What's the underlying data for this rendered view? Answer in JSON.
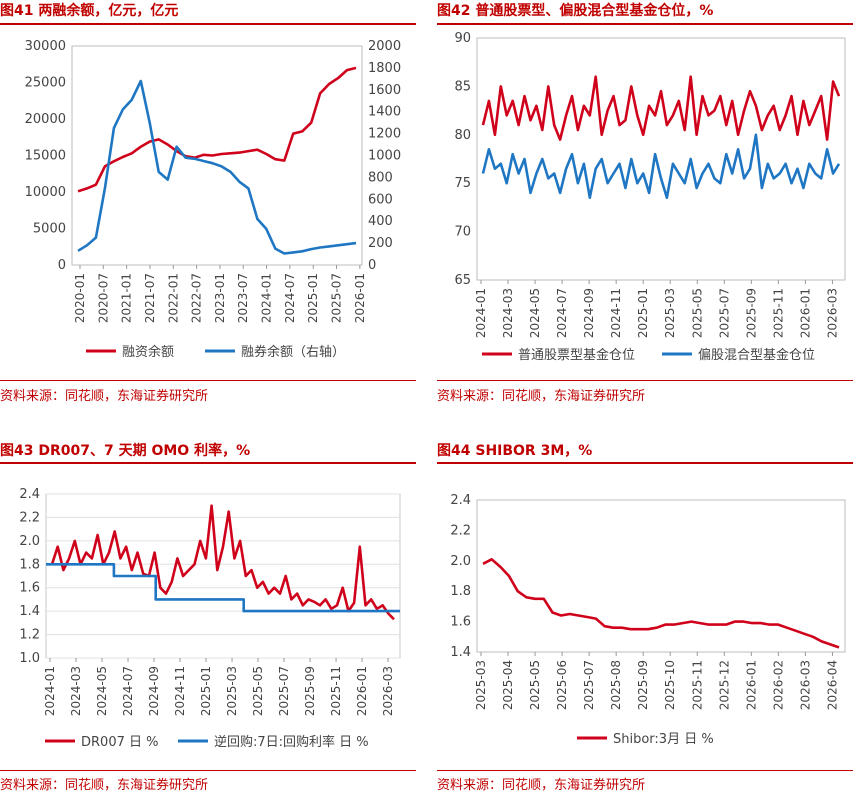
{
  "panels": [
    {
      "title": "图41  两融余额，亿元，亿元",
      "source": "资料来源：同花顺，东海证券研究所",
      "chart_data": {
        "type": "line",
        "title": "两融余额，亿元，亿元",
        "x_ticks": [
          "2020-01",
          "2020-07",
          "2021-01",
          "2021-07",
          "2022-01",
          "2022-07",
          "2023-01",
          "2023-07",
          "2024-01",
          "2024-07",
          "2025-01",
          "2025-07",
          "2026-01"
        ],
        "ylim": [
          0,
          30000
        ],
        "y_ticks": [
          "0",
          "5000",
          "10000",
          "15000",
          "20000",
          "25000",
          "30000"
        ],
        "y2lim": [
          0,
          2000
        ],
        "y2_ticks": [
          "0",
          "200",
          "400",
          "600",
          "800",
          "1000",
          "1200",
          "1400",
          "1600",
          "1800",
          "2000"
        ],
        "series": [
          {
            "name": "融资余额",
            "axis": "left",
            "color": "#d0021b",
            "values": [
              10100,
              10500,
              11000,
              13500,
              14200,
              14800,
              15300,
              16200,
              16900,
              17200,
              16500,
              15600,
              14900,
              14700,
              15100,
              15000,
              15200,
              15300,
              15400,
              15600,
              15800,
              15200,
              14500,
              14300,
              18000,
              18300,
              19500,
              23500,
              24800,
              25600,
              26700,
              27000
            ]
          },
          {
            "name": "融券余额（右轴）",
            "axis": "right",
            "color": "#1f77c4",
            "values": [
              130,
              180,
              250,
              700,
              1250,
              1420,
              1510,
              1680,
              1300,
              850,
              780,
              1080,
              980,
              970,
              950,
              930,
              900,
              850,
              760,
              700,
              420,
              330,
              150,
              105,
              115,
              125,
              145,
              160,
              170,
              180,
              190,
              200
            ]
          }
        ]
      }
    },
    {
      "title": "图42  普通股票型、偏股混合型基金仓位，%",
      "source": "资料来源：同花顺，东海证券研究所",
      "chart_data": {
        "type": "line",
        "title": "普通股票型、偏股混合型基金仓位，%",
        "x_ticks": [
          "2024-01",
          "2024-03",
          "2024-05",
          "2024-07",
          "2024-09",
          "2024-11",
          "2025-01",
          "2025-03",
          "2025-05",
          "2025-07",
          "2025-09",
          "2025-11",
          "2026-01",
          "2026-03"
        ],
        "ylim": [
          65,
          90
        ],
        "y_ticks": [
          "65",
          "70",
          "75",
          "80",
          "85",
          "90"
        ],
        "series": [
          {
            "name": "普通股票型基金仓位",
            "color": "#d0021b",
            "values": [
              81,
              83.5,
              80,
              85,
              82,
              83.5,
              81,
              84,
              81.5,
              83,
              80.5,
              85,
              81,
              79.5,
              82,
              84,
              80.5,
              83,
              82,
              86,
              80,
              82.5,
              84,
              81,
              81.5,
              85,
              82,
              80,
              83,
              82,
              84.5,
              81,
              82,
              83.5,
              80.5,
              86,
              80,
              84,
              82,
              82.5,
              84,
              81,
              83.5,
              80,
              82.5,
              84.5,
              83,
              80.5,
              82,
              83,
              80.5,
              82,
              84,
              80,
              83.5,
              81,
              82.5,
              84,
              79.5,
              85.5,
              84
            ]
          },
          {
            "name": "偏股混合型基金仓位",
            "color": "#1f77c4",
            "values": [
              76,
              78.5,
              76.5,
              77,
              75,
              78,
              76,
              77.5,
              74,
              76,
              77.5,
              75.5,
              76,
              74,
              76.5,
              78,
              75,
              77,
              73.5,
              76.5,
              77.5,
              75,
              76,
              77,
              74.5,
              77.5,
              75,
              76,
              74,
              78,
              75.5,
              73.5,
              77,
              76,
              75,
              77.5,
              74.5,
              76,
              77,
              75.5,
              75,
              78,
              76,
              78.5,
              75.5,
              76.5,
              80,
              74.5,
              77,
              75.5,
              76,
              77,
              75,
              76.5,
              74.5,
              77,
              76,
              75.5,
              78.5,
              76,
              77
            ]
          }
        ]
      }
    },
    {
      "title": "图43  DR007、7 天期 OMO 利率，%",
      "source": "资料来源：同花顺，东海证券研究所",
      "chart_data": {
        "type": "line",
        "title": "DR007、7 天期 OMO 利率，%",
        "x_ticks": [
          "2024-01",
          "2024-03",
          "2024-05",
          "2024-07",
          "2024-09",
          "2024-11",
          "2025-01",
          "2025-03",
          "2025-05",
          "2025-07",
          "2025-09",
          "2025-11",
          "2026-01",
          "2026-03"
        ],
        "ylim": [
          1.0,
          2.4
        ],
        "y_ticks": [
          "1.0",
          "1.2",
          "1.4",
          "1.6",
          "1.8",
          "2.0",
          "2.2",
          "2.4"
        ],
        "series": [
          {
            "name": "DR007 日 %",
            "color": "#d0021b",
            "values": [
              1.8,
              1.95,
              1.75,
              1.85,
              2.0,
              1.8,
              1.9,
              1.85,
              2.05,
              1.8,
              1.9,
              2.08,
              1.85,
              1.95,
              1.75,
              1.9,
              1.72,
              1.7,
              1.9,
              1.6,
              1.55,
              1.65,
              1.85,
              1.7,
              1.75,
              1.8,
              2.0,
              1.85,
              2.3,
              1.75,
              1.95,
              2.25,
              1.85,
              2.0,
              1.7,
              1.75,
              1.6,
              1.65,
              1.55,
              1.6,
              1.55,
              1.7,
              1.5,
              1.55,
              1.45,
              1.5,
              1.48,
              1.45,
              1.5,
              1.42,
              1.45,
              1.6,
              1.4,
              1.47,
              1.95,
              1.45,
              1.5,
              1.42,
              1.45,
              1.38,
              1.33
            ]
          },
          {
            "name": "逆回购:7日:回购利率 日 %",
            "color": "#1f77c4",
            "step": true,
            "x_index": [
              0,
              11.5,
              18.6,
              33.5,
              60
            ],
            "values": [
              1.8,
              1.7,
              1.5,
              1.4,
              1.4
            ]
          }
        ]
      }
    },
    {
      "title": "图44  SHIBOR 3M，%",
      "source": "资料来源：同花顺，东海证券研究所",
      "chart_data": {
        "type": "line",
        "title": "SHIBOR 3M，%",
        "x_ticks": [
          "2025-03",
          "2025-04",
          "2025-05",
          "2025-06",
          "2025-07",
          "2025-08",
          "2025-09",
          "2025-10",
          "2025-11",
          "2025-12",
          "2026-01",
          "2026-02",
          "2026-03",
          "2026-04"
        ],
        "ylim": [
          1.4,
          2.4
        ],
        "y_ticks": [
          "1.4",
          "1.6",
          "1.8",
          "2.0",
          "2.2",
          "2.4"
        ],
        "series": [
          {
            "name": "Shibor:3月 日 %",
            "color": "#d0021b",
            "values": [
              1.98,
              2.01,
              1.96,
              1.9,
              1.8,
              1.76,
              1.75,
              1.75,
              1.66,
              1.64,
              1.65,
              1.64,
              1.63,
              1.62,
              1.57,
              1.56,
              1.56,
              1.55,
              1.55,
              1.55,
              1.56,
              1.58,
              1.58,
              1.59,
              1.6,
              1.59,
              1.58,
              1.58,
              1.58,
              1.6,
              1.6,
              1.59,
              1.59,
              1.58,
              1.58,
              1.56,
              1.54,
              1.52,
              1.5,
              1.47,
              1.45,
              1.43
            ]
          }
        ]
      }
    }
  ]
}
